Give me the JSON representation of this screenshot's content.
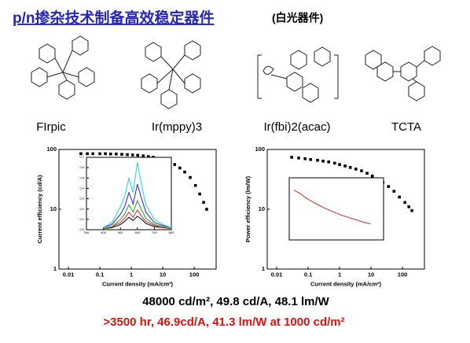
{
  "header": {
    "title": "p/n掺杂技术制备高效稳定器件",
    "subtitle": "(白光器件)"
  },
  "molecules": [
    {
      "label": "FIrpic"
    },
    {
      "label": "Ir(mppy)3"
    },
    {
      "label": "Ir(fbi)2(acac)"
    },
    {
      "label": "TCTA"
    }
  ],
  "chart_data": [
    {
      "type": "scatter",
      "x_label": "Current density (mA/cm²)",
      "y_label": "Current efficiency (cd/A)",
      "log_x": true,
      "log_y": true,
      "color": "#000000",
      "xlim": [
        0.005,
        500
      ],
      "xticks": [
        0.01,
        0.1,
        1,
        10,
        100
      ],
      "ylim": [
        1,
        100
      ],
      "yticks": [
        1,
        10,
        100
      ],
      "x": [
        0.025,
        0.04,
        0.06,
        0.1,
        0.15,
        0.22,
        0.33,
        0.5,
        0.75,
        1.1,
        1.6,
        2.4,
        3.5,
        5,
        7.5,
        11,
        16,
        24,
        35,
        50,
        75,
        110,
        150,
        200,
        250
      ],
      "values": [
        85,
        85,
        85,
        85,
        85,
        84,
        84,
        83,
        82,
        81,
        80,
        78,
        76,
        74,
        71,
        67,
        62,
        56,
        49,
        42,
        34,
        25,
        18,
        13,
        10
      ],
      "inset": {
        "type": "line",
        "xlim": [
          300,
          800
        ],
        "xticks": [
          300,
          400,
          500,
          600,
          700,
          800
        ],
        "ylim": [
          0,
          0.7
        ],
        "yticks": [
          {
            "value": 0,
            "label": "0.0"
          },
          0.1,
          0.2,
          0.3,
          0.4,
          0.5,
          0.6,
          0.7
        ],
        "x": [
          400,
          450,
          500,
          525,
          550,
          575,
          600,
          625,
          650,
          700,
          750,
          800
        ],
        "series": [
          {
            "color": "#000000",
            "values": [
              0.01,
              0.02,
              0.05,
              0.08,
              0.12,
              0.09,
              0.13,
              0.1,
              0.06,
              0.03,
              0.02,
              0.01
            ]
          },
          {
            "color": "#e02020",
            "values": [
              0.01,
              0.03,
              0.07,
              0.11,
              0.17,
              0.12,
              0.19,
              0.13,
              0.08,
              0.04,
              0.02,
              0.01
            ]
          },
          {
            "color": "#20a020",
            "values": [
              0.01,
              0.03,
              0.1,
              0.15,
              0.24,
              0.17,
              0.28,
              0.19,
              0.11,
              0.05,
              0.03,
              0.01
            ]
          },
          {
            "color": "#2020e0",
            "values": [
              0.02,
              0.05,
              0.15,
              0.22,
              0.36,
              0.25,
              0.44,
              0.3,
              0.17,
              0.07,
              0.04,
              0.02
            ]
          },
          {
            "color": "#20d0e0",
            "values": [
              0.02,
              0.07,
              0.22,
              0.32,
              0.5,
              0.36,
              0.65,
              0.43,
              0.24,
              0.1,
              0.05,
              0.02
            ]
          }
        ]
      }
    },
    {
      "type": "scatter",
      "x_label": "Current density (mA/cm²)",
      "y_label": "Power efficiency (lm/W)",
      "log_x": true,
      "log_y": true,
      "color": "#000000",
      "xlim": [
        0.005,
        500
      ],
      "xticks": [
        0.01,
        0.1,
        1,
        10,
        100
      ],
      "ylim": [
        1,
        100
      ],
      "yticks": [
        1,
        10,
        100
      ],
      "x": [
        0.03,
        0.05,
        0.08,
        0.12,
        0.2,
        0.3,
        0.45,
        0.7,
        1,
        1.5,
        2.2,
        3.3,
        5,
        7.5,
        11,
        16,
        24,
        36,
        54,
        80,
        120,
        160,
        200
      ],
      "values": [
        74,
        72,
        70,
        68,
        66,
        64,
        62,
        59,
        56,
        53,
        50,
        47,
        44,
        40,
        36,
        32,
        28,
        24,
        20,
        16,
        13,
        11,
        9.5
      ],
      "inset": {
        "type": "line",
        "xlim": [
          -200,
          3800
        ],
        "ylim": [
          0.2,
          1.2
        ],
        "x": [
          0,
          250,
          500,
          750,
          1000,
          1250,
          1500,
          1750,
          2000,
          2250,
          2500,
          2750,
          3000,
          3250
        ],
        "series": [
          {
            "color": "#c03030",
            "values": [
              1.0,
              0.95,
              0.88,
              0.82,
              0.77,
              0.72,
              0.68,
              0.64,
              0.6,
              0.57,
              0.54,
              0.51,
              0.48,
              0.46
            ]
          }
        ]
      }
    }
  ],
  "summary": {
    "line1": "48000 cd/m², 49.8 cd/A, 48.1 lm/W",
    "line2": ">3500 hr, 46.9cd/A, 41.3 lm/W at 1000 cd/m²"
  }
}
